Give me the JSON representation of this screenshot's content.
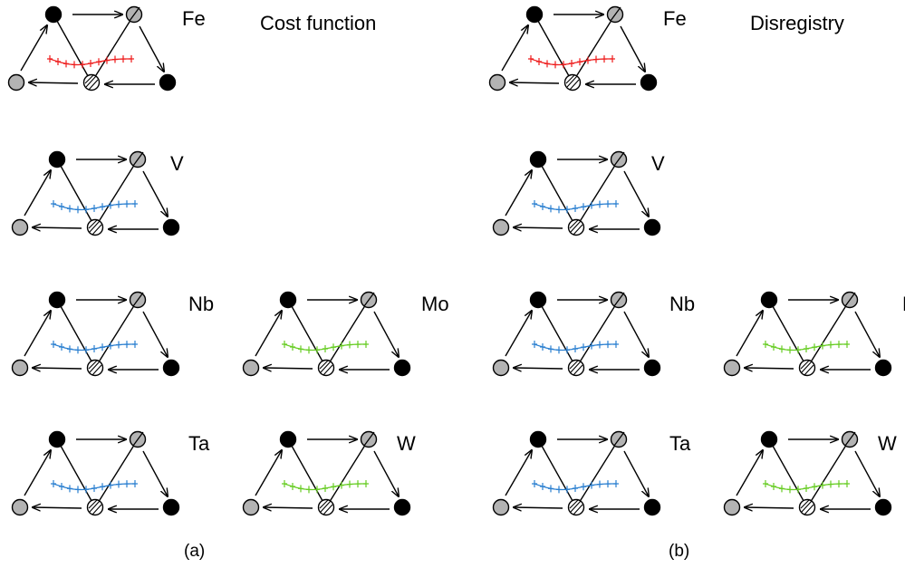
{
  "panels": [
    {
      "title": "Cost function",
      "caption": "(a)",
      "diagrams": [
        {
          "element": "Fe",
          "curve_color": "#ee1c1c"
        },
        {
          "element": "V",
          "curve_color": "#2a7fd0"
        },
        {
          "element": "Nb",
          "curve_color": "#2a7fd0"
        },
        {
          "element": "Mo",
          "curve_color": "#66cc22"
        },
        {
          "element": "Ta",
          "curve_color": "#2a7fd0"
        },
        {
          "element": "W",
          "curve_color": "#66cc22"
        }
      ]
    },
    {
      "title": "Disregistry",
      "caption": "(b)",
      "diagrams": [
        {
          "element": "Fe",
          "curve_color": "#ee1c1c"
        },
        {
          "element": "V",
          "curve_color": "#2a7fd0"
        },
        {
          "element": "Nb",
          "curve_color": "#2a7fd0"
        },
        {
          "element": "Mo",
          "curve_color": "#66cc22"
        },
        {
          "element": "Ta",
          "curve_color": "#2a7fd0"
        },
        {
          "element": "W",
          "curve_color": "#66cc22"
        }
      ]
    }
  ],
  "colors": {
    "atom_black": "#000000",
    "atom_gray": "#b3b3b3",
    "stroke": "#000000"
  }
}
